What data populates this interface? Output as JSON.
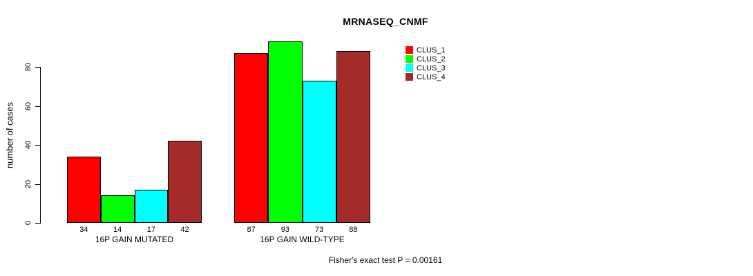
{
  "chart_data": {
    "type": "bar",
    "title": "MRNASEQ_CNMF",
    "xlabel": "",
    "ylabel": "number of cases",
    "yticks": [
      0,
      20,
      40,
      60,
      80
    ],
    "ylim": [
      0,
      100
    ],
    "grid": false,
    "legend_position": "top-right",
    "groups": [
      "16P GAIN MUTATED",
      "16P GAIN WILD-TYPE"
    ],
    "series": [
      {
        "name": "CLUS_1",
        "color": "#ff0000",
        "values": [
          34,
          87
        ]
      },
      {
        "name": "CLUS_2",
        "color": "#00ff00",
        "values": [
          14,
          93
        ]
      },
      {
        "name": "CLUS_3",
        "color": "#00ffff",
        "values": [
          17,
          73
        ]
      },
      {
        "name": "CLUS_4",
        "color": "#a52a2a",
        "values": [
          42,
          88
        ]
      }
    ],
    "bar_border_color": "#000000",
    "text_color": "#000000",
    "background_color": "#ffffff",
    "annotation": "Fisher's exact test P = 0.00161"
  }
}
